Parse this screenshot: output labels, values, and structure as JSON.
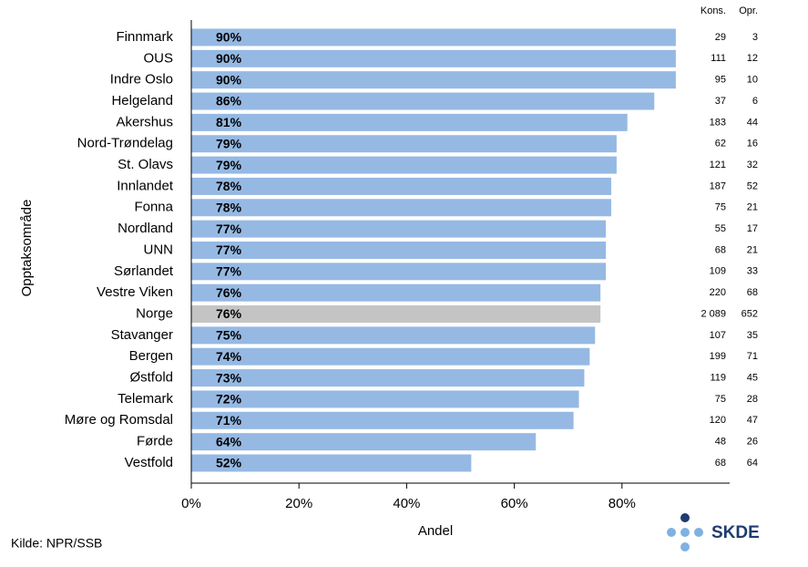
{
  "chart_data": {
    "type": "barh",
    "categories": [
      "Finnmark",
      "OUS",
      "Indre Oslo",
      "Helgeland",
      "Akershus",
      "Nord-Trøndelag",
      "St. Olavs",
      "Innlandet",
      "Fonna",
      "Nordland",
      "UNN",
      "Sørlandet",
      "Vestre Viken",
      "Norge",
      "Stavanger",
      "Bergen",
      "Østfold",
      "Telemark",
      "Møre og Romsdal",
      "Førde",
      "Vestfold"
    ],
    "values": [
      90,
      90,
      90,
      86,
      81,
      79,
      79,
      78,
      78,
      77,
      77,
      77,
      76,
      76,
      75,
      74,
      73,
      72,
      71,
      64,
      52
    ],
    "value_labels": [
      "90%",
      "90%",
      "90%",
      "86%",
      "81%",
      "79%",
      "79%",
      "78%",
      "78%",
      "77%",
      "77%",
      "77%",
      "76%",
      "76%",
      "75%",
      "74%",
      "73%",
      "72%",
      "71%",
      "64%",
      "52%"
    ],
    "color": "#95b9e3",
    "highlight_color": "#c4c4c4",
    "highlight_index": 13,
    "xlim": [
      0,
      100
    ],
    "xticks": [
      {
        "value": 0,
        "label": "0%"
      },
      {
        "value": 20,
        "label": "20%"
      },
      {
        "value": 40,
        "label": "40%"
      },
      {
        "value": 60,
        "label": "60%"
      },
      {
        "value": 80,
        "label": "80%"
      }
    ],
    "xlabel": "Andel",
    "ylabel": "Opptaksområde",
    "columns": [
      {
        "name": "Kons.",
        "values": [
          29,
          111,
          95,
          37,
          183,
          62,
          121,
          187,
          75,
          55,
          68,
          109,
          220,
          2089,
          107,
          199,
          119,
          75,
          120,
          48,
          68
        ],
        "value_labels": [
          "29",
          "111",
          "95",
          "37",
          "183",
          "62",
          "121",
          "187",
          "75",
          "55",
          "68",
          "109",
          "220",
          "2 089",
          "107",
          "199",
          "119",
          "75",
          "120",
          "48",
          "68"
        ]
      },
      {
        "name": "Opr.",
        "values": [
          3,
          12,
          10,
          6,
          44,
          16,
          32,
          52,
          21,
          17,
          21,
          33,
          68,
          652,
          35,
          71,
          45,
          28,
          47,
          26,
          64
        ]
      }
    ],
    "source": "Kilde: NPR/SSB",
    "logo": "SKDE"
  }
}
